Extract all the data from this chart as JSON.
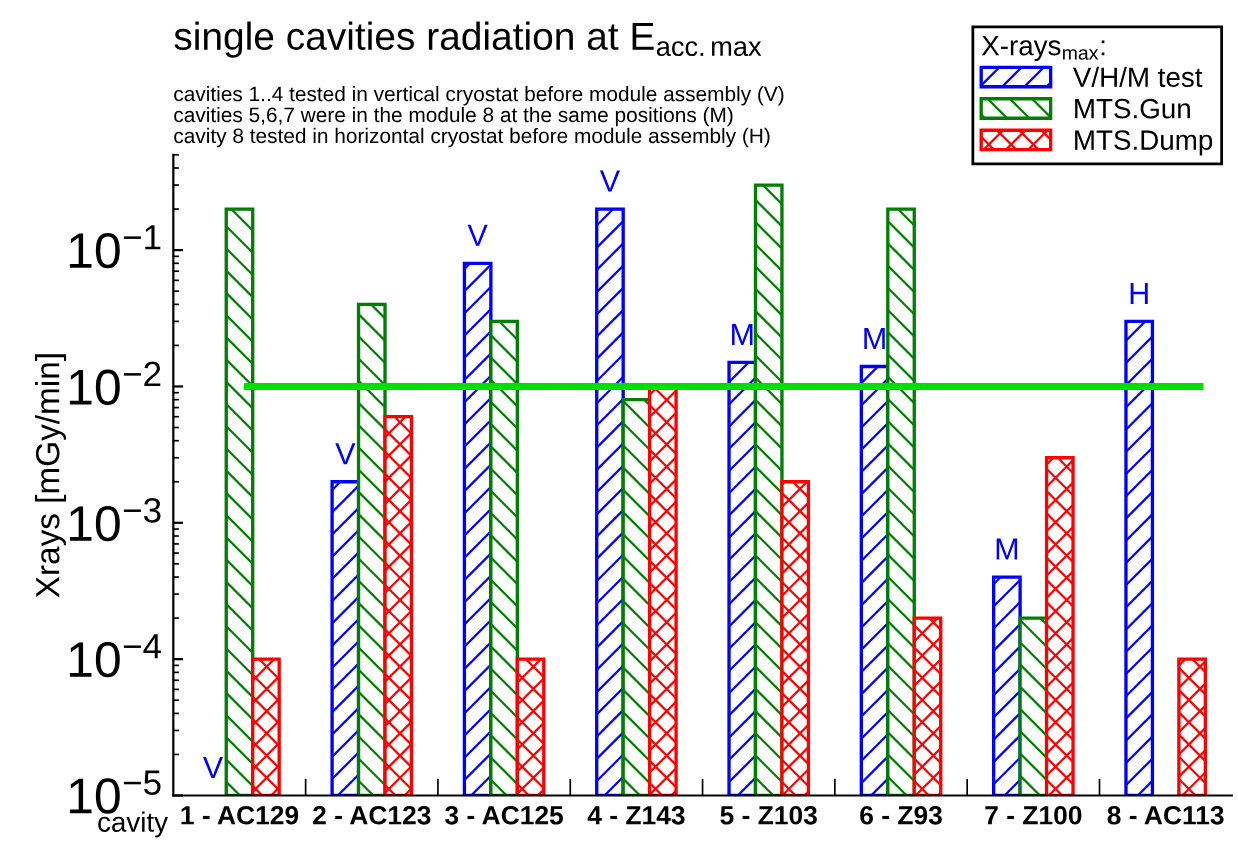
{
  "chart_data": {
    "type": "bar",
    "title": "single cavities radiation at E$_{acc.max}$",
    "subtitle": "cavities 1..4 tested in vertical cryostat before module assembly (V)\ncavities 5,6,7 were in the module 8 at the same positions (M)\ncavity 8 tested in horizontal cryostat before module assembly (H)",
    "xlabel": "cavity",
    "ylabel": "Xrays [mGy/min]",
    "legend_title": "X-rays$_{max}$:",
    "categories": [
      "1 - AC129",
      "2 - AC123",
      "3 - AC125",
      "4 - Z143",
      "5 - Z103",
      "6 - Z93",
      "7 - Z100",
      "8 - AC113"
    ],
    "series": [
      {
        "name": "V/H/M test",
        "color": "#0000ff",
        "values": [
          null,
          0.002,
          0.08,
          0.2,
          0.015,
          0.014,
          0.0004,
          0.03
        ],
        "value_labels": [
          "V",
          "V",
          "V",
          "V",
          "M",
          "M",
          "M",
          "H"
        ]
      },
      {
        "name": "MTS.Gun",
        "color": "#008000",
        "values": [
          0.2,
          0.04,
          0.03,
          0.008,
          0.3,
          0.2,
          0.0002,
          null
        ]
      },
      {
        "name": "MTS.Dump",
        "color": "#ff0000",
        "values": [
          0.0001,
          0.006,
          0.0001,
          0.01,
          0.002,
          0.0002,
          0.003,
          0.0001
        ]
      }
    ],
    "ref_lines": [
      {
        "axis": "y",
        "value": 0.01,
        "color": "#00e000"
      }
    ],
    "log": "y",
    "ylim": [
      1e-05,
      0.5
    ],
    "yticks": [
      {
        "value": 1e-05,
        "label": "10$^{−5}$"
      },
      {
        "value": 0.0001,
        "label": "10$^{−4}$"
      },
      {
        "value": 0.001,
        "label": "10$^{−3}$"
      },
      {
        "value": 0.01,
        "label": "10$^{−2}$"
      },
      {
        "value": 0.1,
        "label": "10$^{−1}$"
      }
    ],
    "grid": false,
    "legend": "top right"
  }
}
